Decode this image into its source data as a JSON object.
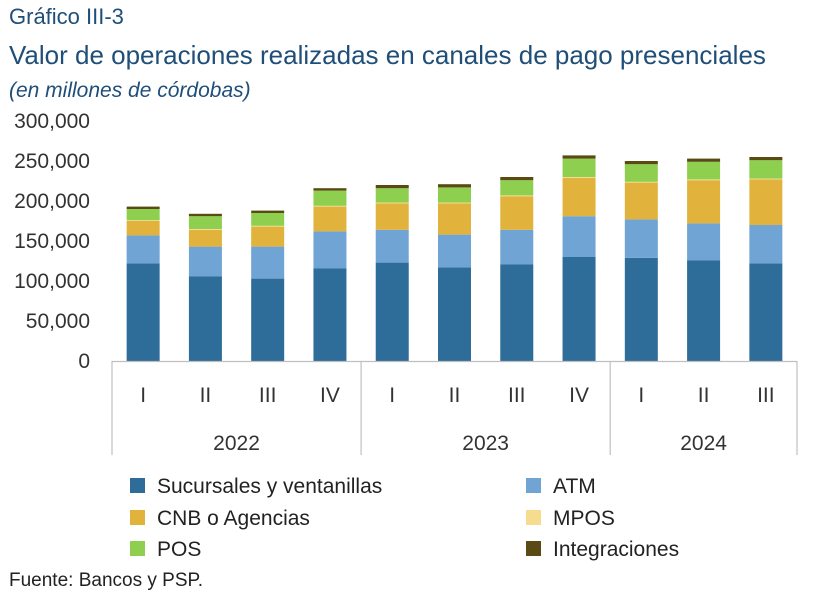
{
  "header": {
    "graf_number": "Gráfico III-3",
    "title": "Valor de operaciones realizadas en canales de pago presenciales",
    "subtitle": "(en millones de córdobas)"
  },
  "source": "Fuente: Bancos y PSP.",
  "chart_data": {
    "type": "bar",
    "stacked": true,
    "title": "Valor de operaciones realizadas en canales de pago presenciales",
    "subtitle": "(en millones de córdobas)",
    "ylim": [
      0,
      300000
    ],
    "y_ticks": [
      "0",
      "50,000",
      "100,000",
      "150,000",
      "200,000",
      "250,000",
      "300,000"
    ],
    "y_tick_values": [
      0,
      50000,
      100000,
      150000,
      200000,
      250000,
      300000
    ],
    "grid": false,
    "legend_position": "bottom",
    "categories": [
      "I",
      "II",
      "III",
      "IV",
      "I",
      "II",
      "III",
      "IV",
      "I",
      "II",
      "III"
    ],
    "groups": [
      {
        "label": "2022",
        "count": 4
      },
      {
        "label": "2023",
        "count": 4
      },
      {
        "label": "2024",
        "count": 3
      }
    ],
    "series": [
      {
        "name": "Sucursales y ventanillas",
        "color": "#2e6c99",
        "values": [
          122000,
          106000,
          103000,
          116000,
          123000,
          117000,
          121000,
          130000,
          129000,
          126000,
          122000
        ]
      },
      {
        "name": "ATM",
        "color": "#6fa4d4",
        "values": [
          35000,
          37000,
          40000,
          46000,
          41000,
          41000,
          43000,
          51000,
          48000,
          46000,
          48000
        ]
      },
      {
        "name": "CNB o Agencias",
        "color": "#e1b33c",
        "values": [
          18000,
          21000,
          25000,
          31000,
          33000,
          39000,
          42000,
          48000,
          46000,
          54000,
          57000
        ]
      },
      {
        "name": "MPOS",
        "color": "#f6dc8e",
        "values": [
          1000,
          1000,
          1000,
          1000,
          1000,
          1000,
          1000,
          1000,
          1000,
          1000,
          1000
        ]
      },
      {
        "name": "POS",
        "color": "#8fcf4f",
        "values": [
          14000,
          16000,
          16000,
          19000,
          18000,
          19000,
          19000,
          23000,
          22000,
          22000,
          23000
        ]
      },
      {
        "name": "Integraciones",
        "color": "#5a4a14",
        "values": [
          3000,
          3000,
          3000,
          3000,
          4000,
          4000,
          4000,
          4000,
          4000,
          4000,
          4000
        ]
      }
    ]
  }
}
